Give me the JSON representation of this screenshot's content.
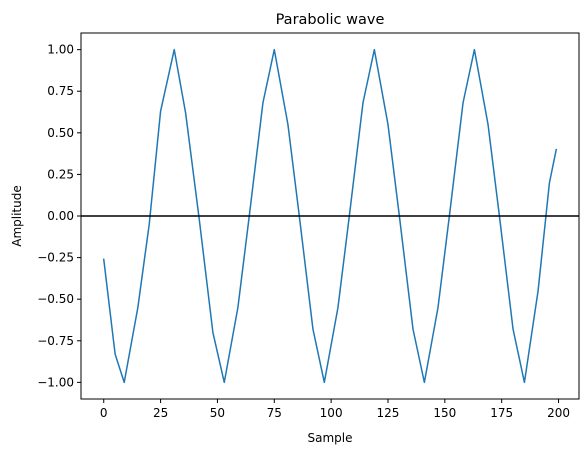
{
  "chart_data": {
    "type": "line",
    "title": "Parabolic wave",
    "xlabel": "Sample",
    "ylabel": "Amplitude",
    "xlim": [
      -10,
      209
    ],
    "ylim": [
      -1.1,
      1.1
    ],
    "xticks": [
      0,
      25,
      50,
      75,
      100,
      125,
      150,
      175,
      200
    ],
    "yticks": [
      -1.0,
      -0.75,
      -0.5,
      -0.25,
      0.0,
      0.25,
      0.5,
      0.75,
      1.0
    ],
    "xtick_labels": [
      "0",
      "25",
      "50",
      "75",
      "100",
      "125",
      "150",
      "175",
      "200"
    ],
    "ytick_labels": [
      "−1.00",
      "−0.75",
      "−0.50",
      "−0.25",
      "0.00",
      "0.25",
      "0.50",
      "0.75",
      "1.00"
    ],
    "grid": false,
    "reference_line": {
      "y": 0.0,
      "color": "#000000"
    },
    "series": [
      {
        "color": "#1f77b4",
        "x": [
          0,
          5,
          9,
          15,
          20,
          25,
          31,
          36,
          42,
          48,
          53,
          59,
          64,
          70,
          75,
          81,
          86,
          92,
          97,
          103,
          108,
          114,
          119,
          125,
          130,
          136,
          141,
          147,
          152,
          158,
          163,
          169,
          174,
          180,
          185,
          191,
          196,
          199
        ],
        "y": [
          -0.26,
          -0.83,
          -1.0,
          -0.55,
          -0.05,
          0.63,
          1.0,
          0.62,
          -0.02,
          -0.7,
          -1.0,
          -0.55,
          0.0,
          0.68,
          1.0,
          0.55,
          0.0,
          -0.68,
          -1.0,
          -0.55,
          0.0,
          0.68,
          1.0,
          0.55,
          0.0,
          -0.68,
          -1.0,
          -0.55,
          0.0,
          0.68,
          1.0,
          0.55,
          0.0,
          -0.68,
          -1.0,
          -0.45,
          0.2,
          0.4
        ]
      }
    ]
  }
}
